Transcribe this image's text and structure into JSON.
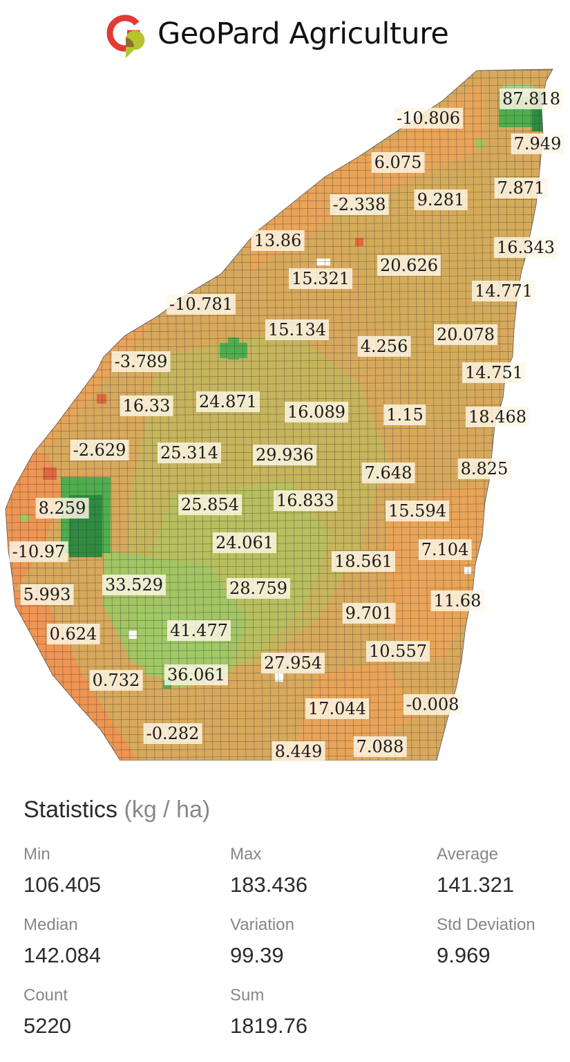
{
  "brand": {
    "name": "GeoPard Agriculture",
    "icon": "geopard-logo"
  },
  "map": {
    "colors": {
      "orange": "#ef9552",
      "light_orange": "#e9a458",
      "tan": "#d4ab5a",
      "olive": "#c6b55c",
      "light_green": "#a3c563",
      "green": "#4fae4e",
      "dark_green": "#2e8b3f",
      "red_orange": "#e4673e",
      "grid_line": "#333333"
    },
    "zones": [
      {
        "value": "87.818"
      },
      {
        "value": "-10.806"
      },
      {
        "value": "7.949"
      },
      {
        "value": "6.075"
      },
      {
        "value": "7.871"
      },
      {
        "value": "-2.338"
      },
      {
        "value": "9.281"
      },
      {
        "value": "13.86"
      },
      {
        "value": "16.343"
      },
      {
        "value": "20.626"
      },
      {
        "value": "15.321"
      },
      {
        "value": "14.771"
      },
      {
        "value": "-10.781"
      },
      {
        "value": "15.134"
      },
      {
        "value": "20.078"
      },
      {
        "value": "4.256"
      },
      {
        "value": "-3.789"
      },
      {
        "value": "14.751"
      },
      {
        "value": "24.871"
      },
      {
        "value": "16.33"
      },
      {
        "value": "16.089"
      },
      {
        "value": "1.15"
      },
      {
        "value": "18.468"
      },
      {
        "value": "-2.629"
      },
      {
        "value": "25.314"
      },
      {
        "value": "29.936"
      },
      {
        "value": "8.825"
      },
      {
        "value": "7.648"
      },
      {
        "value": "25.854"
      },
      {
        "value": "16.833"
      },
      {
        "value": "8.259"
      },
      {
        "value": "15.594"
      },
      {
        "value": "24.061"
      },
      {
        "value": "-10.97"
      },
      {
        "value": "7.104"
      },
      {
        "value": "18.561"
      },
      {
        "value": "33.529"
      },
      {
        "value": "28.759"
      },
      {
        "value": "5.993"
      },
      {
        "value": "11.68"
      },
      {
        "value": "9.701"
      },
      {
        "value": "41.477"
      },
      {
        "value": "0.624"
      },
      {
        "value": "10.557"
      },
      {
        "value": "27.954"
      },
      {
        "value": "36.061"
      },
      {
        "value": "0.732"
      },
      {
        "value": "17.044"
      },
      {
        "value": "-0.008"
      },
      {
        "value": "-0.282"
      },
      {
        "value": "7.088"
      },
      {
        "value": "8.449"
      }
    ]
  },
  "stats": {
    "title": "Statistics",
    "unit": "(kg / ha)",
    "items": [
      {
        "label": "Min",
        "value": "106.405"
      },
      {
        "label": "Max",
        "value": "183.436"
      },
      {
        "label": "Average",
        "value": "141.321"
      },
      {
        "label": "Median",
        "value": "142.084"
      },
      {
        "label": "Variation",
        "value": "99.39"
      },
      {
        "label": "Std Deviation",
        "value": "9.969"
      },
      {
        "label": "Count",
        "value": "5220"
      },
      {
        "label": "Sum",
        "value": "1819.76"
      }
    ]
  }
}
